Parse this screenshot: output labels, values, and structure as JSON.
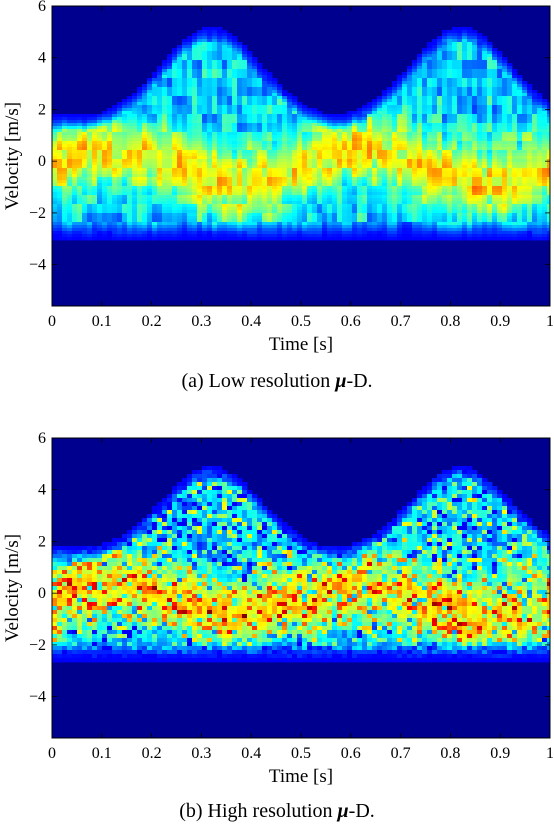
{
  "chart_data": [
    {
      "type": "heatmap",
      "caption_prefix": "(a) Low resolution ",
      "caption_symbol": "μ",
      "caption_suffix": "-D.",
      "xlabel": "Time [s]",
      "ylabel": "Velocity [m/s]",
      "xlim": [
        0,
        1
      ],
      "ylim": [
        -5.6,
        6
      ],
      "xticks": [
        "0",
        "0.1",
        "0.2",
        "0.3",
        "0.4",
        "0.5",
        "0.6",
        "0.7",
        "0.8",
        "0.9",
        "1"
      ],
      "yticks": [
        "-4",
        "-2",
        "0",
        "2",
        "4",
        "6"
      ],
      "colormap": "jet",
      "background_color": "#00008f",
      "signature": {
        "period_s": 0.5,
        "peak_times_s": [
          0.32,
          0.82
        ],
        "peak_velocity_m_s": 4.6,
        "min_velocity_m_s": -2.3,
        "dense_band_m_s": [
          -1.5,
          1.5
        ],
        "texture": "smooth"
      }
    },
    {
      "type": "heatmap",
      "caption_prefix": "(b) High resolution ",
      "caption_symbol": "μ",
      "caption_suffix": "-D.",
      "xlabel": "Time [s]",
      "ylabel": "Velocity [m/s]",
      "xlim": [
        0,
        1
      ],
      "ylim": [
        -5.6,
        6
      ],
      "xticks": [
        "0",
        "0.1",
        "0.2",
        "0.3",
        "0.4",
        "0.5",
        "0.6",
        "0.7",
        "0.8",
        "0.9",
        "1"
      ],
      "yticks": [
        "-4",
        "-2",
        "0",
        "2",
        "4",
        "6"
      ],
      "colormap": "jet",
      "background_color": "#00008f",
      "signature": {
        "period_s": 0.5,
        "peak_times_s": [
          0.32,
          0.82
        ],
        "peak_velocity_m_s": 4.3,
        "min_velocity_m_s": -1.8,
        "dense_band_m_s": [
          -1.3,
          1.2
        ],
        "texture": "speckled"
      }
    }
  ]
}
